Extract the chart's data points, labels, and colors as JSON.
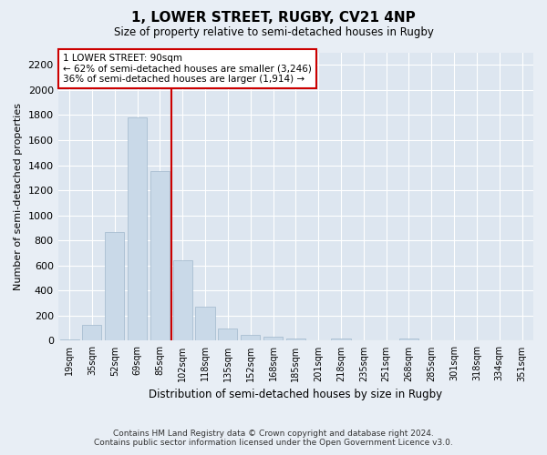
{
  "title": "1, LOWER STREET, RUGBY, CV21 4NP",
  "subtitle": "Size of property relative to semi-detached houses in Rugby",
  "xlabel": "Distribution of semi-detached houses by size in Rugby",
  "ylabel": "Number of semi-detached properties",
  "bar_labels": [
    "19sqm",
    "35sqm",
    "52sqm",
    "69sqm",
    "85sqm",
    "102sqm",
    "118sqm",
    "135sqm",
    "152sqm",
    "168sqm",
    "185sqm",
    "201sqm",
    "218sqm",
    "235sqm",
    "251sqm",
    "268sqm",
    "285sqm",
    "301sqm",
    "318sqm",
    "334sqm",
    "351sqm"
  ],
  "bar_values": [
    10,
    125,
    870,
    1780,
    1350,
    645,
    270,
    100,
    50,
    35,
    15,
    5,
    15,
    0,
    0,
    20,
    0,
    0,
    0,
    0,
    0
  ],
  "bar_color": "#c9d9e8",
  "bar_edgecolor": "#a0b8cc",
  "vline_color": "#cc0000",
  "ylim": [
    0,
    2300
  ],
  "yticks": [
    0,
    200,
    400,
    600,
    800,
    1000,
    1200,
    1400,
    1600,
    1800,
    2000,
    2200
  ],
  "annotation_title": "1 LOWER STREET: 90sqm",
  "annotation_line1": "← 62% of semi-detached houses are smaller (3,246)",
  "annotation_line2": "36% of semi-detached houses are larger (1,914) →",
  "annotation_box_color": "#cc0000",
  "footer_line1": "Contains HM Land Registry data © Crown copyright and database right 2024.",
  "footer_line2": "Contains public sector information licensed under the Open Government Licence v3.0.",
  "bg_color": "#e8eef5",
  "plot_bg_color": "#dde6f0",
  "grid_color": "#ffffff",
  "vline_bar_index": 4.5
}
